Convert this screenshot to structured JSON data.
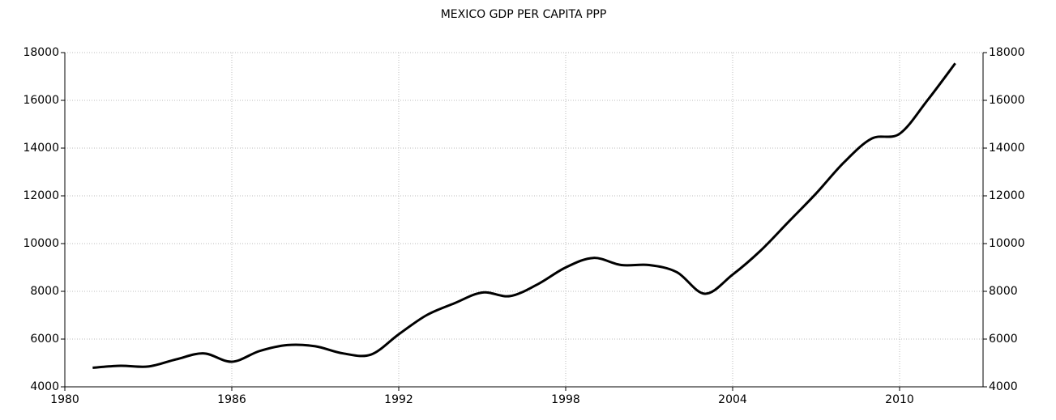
{
  "chart_data": {
    "type": "line",
    "title": "MEXICO GDP PER CAPITA PPP",
    "x": [
      1981,
      1982,
      1983,
      1984,
      1985,
      1986,
      1987,
      1988,
      1989,
      1990,
      1991,
      1992,
      1993,
      1994,
      1995,
      1996,
      1997,
      1998,
      1999,
      2000,
      2001,
      2002,
      2003,
      2004,
      2005,
      2006,
      2007,
      2008,
      2009,
      2010,
      2011,
      2012
    ],
    "series": [
      {
        "name": "Mexico GDP per capita PPP",
        "color": "#000000",
        "values": [
          4800,
          4880,
          4850,
          5150,
          5400,
          5050,
          5500,
          5750,
          5700,
          5400,
          5350,
          6200,
          7000,
          7500,
          7950,
          7800,
          8300,
          9000,
          9400,
          9100,
          9100,
          8800,
          7900,
          8700,
          9700,
          10900,
          12100,
          13400,
          14400,
          14600,
          16000,
          17550
        ]
      }
    ],
    "xlim": [
      1980,
      2013
    ],
    "xticks": [
      1980,
      1986,
      1992,
      1998,
      2004,
      2010
    ],
    "ylim": [
      4000,
      18000
    ],
    "yticks": [
      4000,
      6000,
      8000,
      10000,
      12000,
      14000,
      16000,
      18000
    ],
    "y2lim": [
      4000,
      18000
    ],
    "y2ticks": [
      4000,
      6000,
      8000,
      10000,
      12000,
      14000,
      16000,
      18000
    ],
    "grid": true
  }
}
